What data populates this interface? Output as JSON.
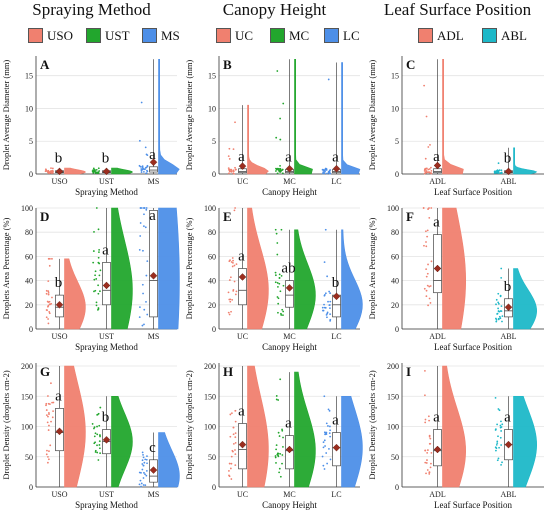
{
  "columns": [
    {
      "title": "Spraying Method",
      "legend": [
        {
          "label": "USO",
          "color": "#F0806F"
        },
        {
          "label": "UST",
          "color": "#22A62D"
        },
        {
          "label": "MS",
          "color": "#4D8FE8"
        }
      ]
    },
    {
      "title": "Canopy Height",
      "legend": [
        {
          "label": "UC",
          "color": "#F0806F"
        },
        {
          "label": "MC",
          "color": "#22A62D"
        },
        {
          "label": "LC",
          "color": "#4D8FE8"
        }
      ]
    },
    {
      "title": "Leaf Surface Position",
      "legend": [
        {
          "label": "ADL",
          "color": "#F0806F"
        },
        {
          "label": "ABL",
          "color": "#1DB8C8"
        }
      ]
    }
  ],
  "chart_data": [
    {
      "type": "raincloud",
      "panel": "A",
      "xlabel": "Spraying Method",
      "ylabel": "Droplet Average Diameter (mm)",
      "categories": [
        "USO",
        "UST",
        "MS"
      ],
      "ylim": [
        0,
        18
      ],
      "yticks": [
        0,
        5,
        10,
        15
      ],
      "means": [
        0.4,
        0.4,
        1.8
      ],
      "medians": [
        0.3,
        0.3,
        0.6
      ],
      "q1": [
        0.2,
        0.2,
        0.3
      ],
      "q3": [
        0.5,
        0.5,
        1.1
      ],
      "max": [
        0.9,
        0.9,
        17.5
      ],
      "letters": [
        "b",
        "b",
        "a"
      ],
      "colors": [
        "#F0806F",
        "#22A62D",
        "#4D8FE8"
      ]
    },
    {
      "type": "raincloud",
      "panel": "B",
      "xlabel": "Canopy Height",
      "ylabel": "Droplet Average Diameter (mm)",
      "categories": [
        "UC",
        "MC",
        "LC"
      ],
      "ylim": [
        0,
        18
      ],
      "yticks": [
        0,
        5,
        10,
        15
      ],
      "means": [
        1.2,
        0.8,
        0.8
      ],
      "medians": [
        0.4,
        0.4,
        0.4
      ],
      "q1": [
        0.2,
        0.2,
        0.2
      ],
      "q3": [
        0.8,
        0.7,
        0.7
      ],
      "max": [
        10.5,
        17.5,
        17.0
      ],
      "letters": [
        "a",
        "a",
        "a"
      ],
      "colors": [
        "#F0806F",
        "#22A62D",
        "#4D8FE8"
      ]
    },
    {
      "type": "raincloud",
      "panel": "C",
      "xlabel": "Leaf Surface Position",
      "ylabel": "Droplet Average Diameter (mm)",
      "categories": [
        "ADL",
        "ABL"
      ],
      "ylim": [
        0,
        18
      ],
      "yticks": [
        0,
        5,
        10,
        15
      ],
      "means": [
        1.3,
        0.4
      ],
      "medians": [
        0.4,
        0.3
      ],
      "q1": [
        0.2,
        0.2
      ],
      "q3": [
        0.8,
        0.5
      ],
      "max": [
        17.5,
        4.0
      ],
      "letters": [
        "a",
        "b"
      ],
      "colors": [
        "#F0806F",
        "#1DB8C8"
      ]
    },
    {
      "type": "raincloud",
      "panel": "D",
      "xlabel": "Spraying Method",
      "ylabel": "Droplets Area Percentage (%)",
      "categories": [
        "USO",
        "UST",
        "MS"
      ],
      "ylim": [
        0,
        100
      ],
      "yticks": [
        0,
        20,
        40,
        60,
        80,
        100
      ],
      "means": [
        20,
        36,
        44
      ],
      "medians": [
        18,
        32,
        40
      ],
      "q1": [
        10,
        20,
        10
      ],
      "q3": [
        28,
        55,
        98
      ],
      "max": [
        58,
        100,
        100
      ],
      "letters": [
        "b",
        "a",
        "a"
      ],
      "colors": [
        "#F0806F",
        "#22A62D",
        "#4D8FE8"
      ]
    },
    {
      "type": "raincloud",
      "panel": "E",
      "xlabel": "Canopy Height",
      "ylabel": "Droplets Area Percentage (%)",
      "categories": [
        "UC",
        "MC",
        "LC"
      ],
      "ylim": [
        0,
        100
      ],
      "yticks": [
        0,
        20,
        40,
        60,
        80,
        100
      ],
      "means": [
        43,
        34,
        27
      ],
      "medians": [
        32,
        28,
        20
      ],
      "q1": [
        20,
        18,
        10
      ],
      "q3": [
        50,
        40,
        28
      ],
      "max": [
        100,
        82,
        82
      ],
      "letters": [
        "a",
        "ab",
        "b"
      ],
      "colors": [
        "#F0806F",
        "#22A62D",
        "#4D8FE8"
      ]
    },
    {
      "type": "raincloud",
      "panel": "F",
      "xlabel": "Leaf Surface Position",
      "ylabel": "Droplets Area Percentage (%)",
      "categories": [
        "ADL",
        "ABL"
      ],
      "ylim": [
        0,
        100
      ],
      "yticks": [
        0,
        20,
        40,
        60,
        80,
        100
      ],
      "means": [
        50,
        18
      ],
      "medians": [
        40,
        15
      ],
      "q1": [
        30,
        10
      ],
      "q3": [
        78,
        25
      ],
      "max": [
        100,
        50
      ],
      "letters": [
        "a",
        "b"
      ],
      "colors": [
        "#F0806F",
        "#1DB8C8"
      ]
    },
    {
      "type": "raincloud",
      "panel": "G",
      "xlabel": "Spraying Method",
      "ylabel": "Droplet Density (droplets cm-2)",
      "categories": [
        "USO",
        "UST",
        "MS"
      ],
      "ylim": [
        0,
        205
      ],
      "yticks": [
        0,
        50,
        100,
        150,
        200
      ],
      "means": [
        92,
        78,
        28
      ],
      "medians": [
        90,
        75,
        18
      ],
      "q1": [
        60,
        55,
        8
      ],
      "q3": [
        130,
        95,
        45
      ],
      "max": [
        200,
        150,
        90
      ],
      "letters": [
        "a",
        "b",
        "c"
      ],
      "colors": [
        "#F0806F",
        "#22A62D",
        "#4D8FE8"
      ]
    },
    {
      "type": "raincloud",
      "panel": "H",
      "xlabel": "Canopy Height",
      "ylabel": "Droplet Density (droplets cm-2)",
      "categories": [
        "UC",
        "MC",
        "LC"
      ],
      "ylim": [
        0,
        205
      ],
      "yticks": [
        0,
        50,
        100,
        150,
        200
      ],
      "means": [
        70,
        62,
        65
      ],
      "medians": [
        62,
        60,
        65
      ],
      "q1": [
        30,
        30,
        35
      ],
      "q3": [
        105,
        85,
        90
      ],
      "max": [
        200,
        190,
        150
      ],
      "letters": [
        "a",
        "a",
        "a"
      ],
      "colors": [
        "#F0806F",
        "#22A62D",
        "#4D8FE8"
      ]
    },
    {
      "type": "raincloud",
      "panel": "I",
      "xlabel": "Leaf Surface Position",
      "ylabel": "Droplet Density (droplets cm-2)",
      "categories": [
        "ADL",
        "ABL"
      ],
      "ylim": [
        0,
        205
      ],
      "yticks": [
        0,
        50,
        100,
        150,
        200
      ],
      "means": [
        62,
        70
      ],
      "medians": [
        60,
        70
      ],
      "q1": [
        35,
        45
      ],
      "q3": [
        95,
        95
      ],
      "max": [
        200,
        150
      ],
      "letters": [
        "a",
        "a"
      ],
      "colors": [
        "#F0806F",
        "#1DB8C8"
      ]
    }
  ]
}
